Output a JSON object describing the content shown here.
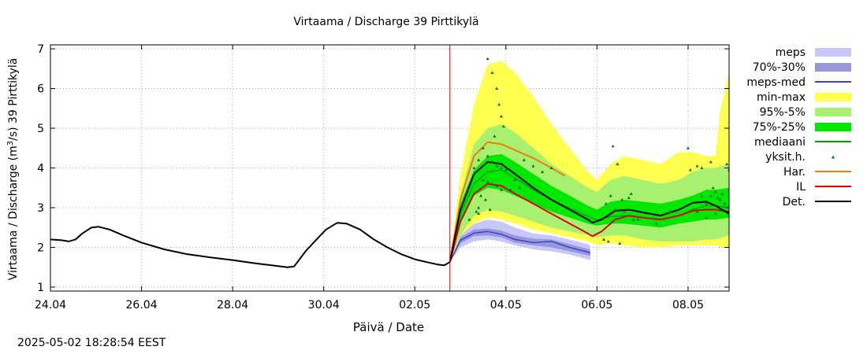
{
  "timestamp": "2025-05-02 18:28:54 EEST",
  "chart_data": {
    "type": "line",
    "title": "Virtaama / Discharge  39 Pirttikylä",
    "xlabel": "Päivä / Date",
    "ylabel_main": "Virtaama / Discharge (m",
    "ylabel_sup": "3",
    "ylabel_tail": "/s)  39 Pirttikylä",
    "xlim": [
      0,
      14.9
    ],
    "ylim": [
      0.9,
      7.1
    ],
    "x_ticks": [
      {
        "x": 0,
        "label": "24.04"
      },
      {
        "x": 2,
        "label": "26.04"
      },
      {
        "x": 4,
        "label": "28.04"
      },
      {
        "x": 6,
        "label": "30.04"
      },
      {
        "x": 8,
        "label": "02.05"
      },
      {
        "x": 10,
        "label": "04.05"
      },
      {
        "x": 12,
        "label": "06.05"
      },
      {
        "x": 14,
        "label": "08.05"
      }
    ],
    "y_ticks": [
      1,
      2,
      3,
      4,
      5,
      6,
      7
    ],
    "forecast_start_x": 8.77,
    "legend": [
      {
        "label": "meps",
        "kind": "box",
        "color": "#c8c8f8"
      },
      {
        "label": "70%-30%",
        "kind": "box",
        "color": "#9898d8"
      },
      {
        "label": "meps-med",
        "kind": "line",
        "color": "#4040d0"
      },
      {
        "label": "min-max",
        "kind": "box",
        "color": "#ffff50"
      },
      {
        "label": "95%-5%",
        "kind": "box",
        "color": "#a8f070"
      },
      {
        "label": "75%-25%",
        "kind": "box",
        "color": "#00e800"
      },
      {
        "label": "mediaani",
        "kind": "line",
        "color": "#00a000"
      },
      {
        "label": "yksit.h.",
        "kind": "point",
        "color": "#007000"
      },
      {
        "label": "Har.",
        "kind": "line",
        "color": "#f08000"
      },
      {
        "label": "IL",
        "kind": "line",
        "color": "#e00000"
      },
      {
        "label": "Det.",
        "kind": "line",
        "color": "#000000"
      }
    ],
    "observed": [
      [
        0,
        2.2
      ],
      [
        0.25,
        2.18
      ],
      [
        0.4,
        2.15
      ],
      [
        0.55,
        2.2
      ],
      [
        0.7,
        2.35
      ],
      [
        0.9,
        2.5
      ],
      [
        1.05,
        2.52
      ],
      [
        1.3,
        2.45
      ],
      [
        1.6,
        2.3
      ],
      [
        2,
        2.12
      ],
      [
        2.5,
        1.95
      ],
      [
        3,
        1.83
      ],
      [
        3.5,
        1.75
      ],
      [
        4,
        1.68
      ],
      [
        4.5,
        1.6
      ],
      [
        5,
        1.53
      ],
      [
        5.2,
        1.5
      ],
      [
        5.35,
        1.52
      ],
      [
        5.6,
        1.9
      ],
      [
        5.8,
        2.15
      ],
      [
        6.05,
        2.45
      ],
      [
        6.3,
        2.62
      ],
      [
        6.5,
        2.6
      ],
      [
        6.8,
        2.45
      ],
      [
        7.1,
        2.2
      ],
      [
        7.4,
        2.0
      ],
      [
        7.7,
        1.83
      ],
      [
        8.0,
        1.7
      ],
      [
        8.3,
        1.62
      ],
      [
        8.5,
        1.57
      ],
      [
        8.65,
        1.55
      ],
      [
        8.77,
        1.63
      ]
    ],
    "band_minmax": {
      "x": [
        8.77,
        9.0,
        9.3,
        9.6,
        9.9,
        10.2,
        10.6,
        11.0,
        11.4,
        11.8,
        12.0,
        12.3,
        12.6,
        13.0,
        13.4,
        13.8,
        14.1,
        14.4,
        14.6,
        14.7,
        14.9
      ],
      "lo": [
        1.63,
        2.2,
        2.6,
        2.75,
        2.7,
        2.6,
        2.45,
        2.35,
        2.25,
        2.15,
        2.05,
        2.1,
        2.05,
        2.0,
        2.0,
        2.05,
        2.05,
        2.05,
        2.05,
        2.02,
        2.0
      ],
      "hi": [
        1.63,
        3.8,
        5.6,
        6.6,
        6.7,
        6.4,
        5.8,
        5.1,
        4.5,
        3.9,
        3.7,
        4.1,
        4.3,
        4.2,
        4.1,
        4.4,
        4.4,
        4.3,
        4.3,
        5.4,
        6.4
      ]
    },
    "band_95_5": {
      "x": [
        8.77,
        9.0,
        9.3,
        9.6,
        9.9,
        10.2,
        10.6,
        11.0,
        11.4,
        11.8,
        12.0,
        12.3,
        12.6,
        13.0,
        13.4,
        13.8,
        14.1,
        14.4,
        14.6,
        14.9
      ],
      "lo": [
        1.63,
        2.3,
        2.8,
        2.95,
        2.9,
        2.8,
        2.65,
        2.5,
        2.4,
        2.3,
        2.25,
        2.3,
        2.3,
        2.2,
        2.15,
        2.15,
        2.15,
        2.2,
        2.2,
        2.3
      ],
      "hi": [
        1.63,
        3.3,
        4.6,
        5.0,
        5.1,
        4.9,
        4.5,
        4.1,
        3.8,
        3.5,
        3.4,
        3.7,
        3.8,
        3.7,
        3.6,
        3.7,
        3.9,
        4.0,
        4.0,
        4.1
      ]
    },
    "band_75_25": {
      "x": [
        8.77,
        9.0,
        9.3,
        9.6,
        9.9,
        10.2,
        10.6,
        11.0,
        11.4,
        11.8,
        12.0,
        12.3,
        12.6,
        13.0,
        13.4,
        13.8,
        14.1,
        14.4,
        14.6,
        14.9
      ],
      "lo": [
        1.63,
        2.6,
        3.3,
        3.5,
        3.45,
        3.3,
        3.1,
        2.9,
        2.75,
        2.6,
        2.55,
        2.6,
        2.6,
        2.55,
        2.5,
        2.6,
        2.65,
        2.7,
        2.7,
        2.75
      ],
      "hi": [
        1.63,
        3.1,
        3.95,
        4.3,
        4.35,
        4.15,
        3.85,
        3.55,
        3.3,
        3.05,
        2.95,
        3.15,
        3.2,
        3.15,
        3.1,
        3.2,
        3.3,
        3.45,
        3.45,
        3.5
      ]
    },
    "median": {
      "x": [
        8.77,
        9.0,
        9.3,
        9.6,
        9.9,
        10.2,
        10.6,
        11.0,
        11.4,
        11.8,
        12.0,
        12.3,
        12.6,
        13.0,
        13.4,
        13.8,
        14.1,
        14.4,
        14.6,
        14.9
      ],
      "y": [
        1.63,
        2.85,
        3.6,
        3.9,
        3.95,
        3.75,
        3.45,
        3.2,
        2.98,
        2.78,
        2.68,
        2.78,
        2.8,
        2.75,
        2.7,
        2.8,
        2.95,
        3.05,
        3.05,
        3.0
      ]
    },
    "meps": {
      "x": [
        8.77,
        9.0,
        9.3,
        9.6,
        9.9,
        10.2,
        10.6,
        11.0,
        11.4,
        11.8,
        11.85
      ],
      "lo": [
        1.63,
        2.0,
        2.15,
        2.2,
        2.15,
        2.05,
        1.95,
        1.9,
        1.82,
        1.7,
        1.68
      ],
      "hi": [
        1.63,
        2.3,
        2.6,
        2.7,
        2.65,
        2.5,
        2.35,
        2.3,
        2.2,
        2.08,
        2.05
      ]
    },
    "meps_70_30": {
      "x": [
        8.77,
        9.0,
        9.3,
        9.6,
        9.9,
        10.2,
        10.6,
        11.0,
        11.4,
        11.8,
        11.85
      ],
      "lo": [
        1.63,
        2.1,
        2.28,
        2.3,
        2.25,
        2.12,
        2.05,
        2.0,
        1.9,
        1.8,
        1.78
      ],
      "hi": [
        1.63,
        2.25,
        2.45,
        2.48,
        2.42,
        2.3,
        2.22,
        2.2,
        2.08,
        1.96,
        1.94
      ]
    },
    "meps_med": {
      "x": [
        8.77,
        9.0,
        9.3,
        9.6,
        9.9,
        10.2,
        10.6,
        11.0,
        11.4,
        11.8,
        11.85
      ],
      "y": [
        1.63,
        2.18,
        2.36,
        2.4,
        2.33,
        2.2,
        2.12,
        2.15,
        2.0,
        1.88,
        1.86
      ]
    },
    "har": {
      "x": [
        8.77,
        9.0,
        9.3,
        9.6,
        9.9,
        10.2,
        10.6,
        11.0,
        11.3
      ],
      "y": [
        1.63,
        3.2,
        4.3,
        4.65,
        4.6,
        4.45,
        4.25,
        4.0,
        3.8
      ]
    },
    "il": {
      "x": [
        8.77,
        9.0,
        9.3,
        9.6,
        9.9,
        10.2,
        10.6,
        11.0,
        11.4,
        11.8,
        11.9,
        12.1,
        12.4,
        12.7,
        13.0,
        13.4,
        13.8,
        14.1,
        14.4,
        14.6,
        14.9
      ],
      "y": [
        1.63,
        2.65,
        3.35,
        3.6,
        3.55,
        3.35,
        3.1,
        2.85,
        2.6,
        2.35,
        2.28,
        2.4,
        2.7,
        2.8,
        2.75,
        2.7,
        2.8,
        2.92,
        2.95,
        2.95,
        2.9
      ]
    },
    "det": {
      "x": [
        8.77,
        9.0,
        9.3,
        9.6,
        9.9,
        10.2,
        10.6,
        11.0,
        11.4,
        11.8,
        11.9,
        12.1,
        12.4,
        12.7,
        13.0,
        13.4,
        13.8,
        14.1,
        14.4,
        14.6,
        14.9
      ],
      "y": [
        1.63,
        2.95,
        3.85,
        4.15,
        4.1,
        3.85,
        3.5,
        3.2,
        2.95,
        2.7,
        2.62,
        2.7,
        2.92,
        2.95,
        2.88,
        2.8,
        2.95,
        3.12,
        3.15,
        3.05,
        2.85
      ]
    },
    "points": [
      [
        9.6,
        6.75
      ],
      [
        9.7,
        6.4
      ],
      [
        9.8,
        6.0
      ],
      [
        9.85,
        5.6
      ],
      [
        9.9,
        5.3
      ],
      [
        9.95,
        5.05
      ],
      [
        9.75,
        4.8
      ],
      [
        9.5,
        4.5
      ],
      [
        9.6,
        4.3
      ],
      [
        9.7,
        4.15
      ],
      [
        9.8,
        4.05
      ],
      [
        9.9,
        4.0
      ],
      [
        10.0,
        3.95
      ],
      [
        9.4,
        4.2
      ],
      [
        9.3,
        4.0
      ],
      [
        9.3,
        3.85
      ],
      [
        9.5,
        3.7
      ],
      [
        9.6,
        3.65
      ],
      [
        9.7,
        3.6
      ],
      [
        9.8,
        3.55
      ],
      [
        9.9,
        3.45
      ],
      [
        10.1,
        3.45
      ],
      [
        9.45,
        3.3
      ],
      [
        9.55,
        3.2
      ],
      [
        9.4,
        3.0
      ],
      [
        9.35,
        2.9
      ],
      [
        9.4,
        2.85
      ],
      [
        9.65,
        2.95
      ],
      [
        9.2,
        2.7
      ],
      [
        10.2,
        3.7
      ],
      [
        10.3,
        3.5
      ],
      [
        10.4,
        4.2
      ],
      [
        10.6,
        4.05
      ],
      [
        10.8,
        3.9
      ],
      [
        11.0,
        4.0
      ],
      [
        12.35,
        4.55
      ],
      [
        12.45,
        4.1
      ],
      [
        12.3,
        3.3
      ],
      [
        12.55,
        3.2
      ],
      [
        12.7,
        3.25
      ],
      [
        12.75,
        3.35
      ],
      [
        12.2,
        3.1
      ],
      [
        12.4,
        2.95
      ],
      [
        12.6,
        2.9
      ],
      [
        12.8,
        2.7
      ],
      [
        12.15,
        2.2
      ],
      [
        12.25,
        2.15
      ],
      [
        12.5,
        2.1
      ],
      [
        12.9,
        2.7
      ],
      [
        13.3,
        2.6
      ],
      [
        13.6,
        2.9
      ],
      [
        14.0,
        4.5
      ],
      [
        14.05,
        3.95
      ],
      [
        14.2,
        4.05
      ],
      [
        14.3,
        3.3
      ],
      [
        14.4,
        3.1
      ],
      [
        14.5,
        3.3
      ],
      [
        14.55,
        3.5
      ],
      [
        14.6,
        3.4
      ],
      [
        14.65,
        3.25
      ],
      [
        14.7,
        3.2
      ],
      [
        14.75,
        3.35
      ],
      [
        14.8,
        3.1
      ],
      [
        14.85,
        4.1
      ],
      [
        14.9,
        3.95
      ],
      [
        14.4,
        2.75
      ],
      [
        14.6,
        2.85
      ],
      [
        14.7,
        2.95
      ],
      [
        14.2,
        2.9
      ],
      [
        14.5,
        4.15
      ],
      [
        14.3,
        4.0
      ]
    ]
  }
}
